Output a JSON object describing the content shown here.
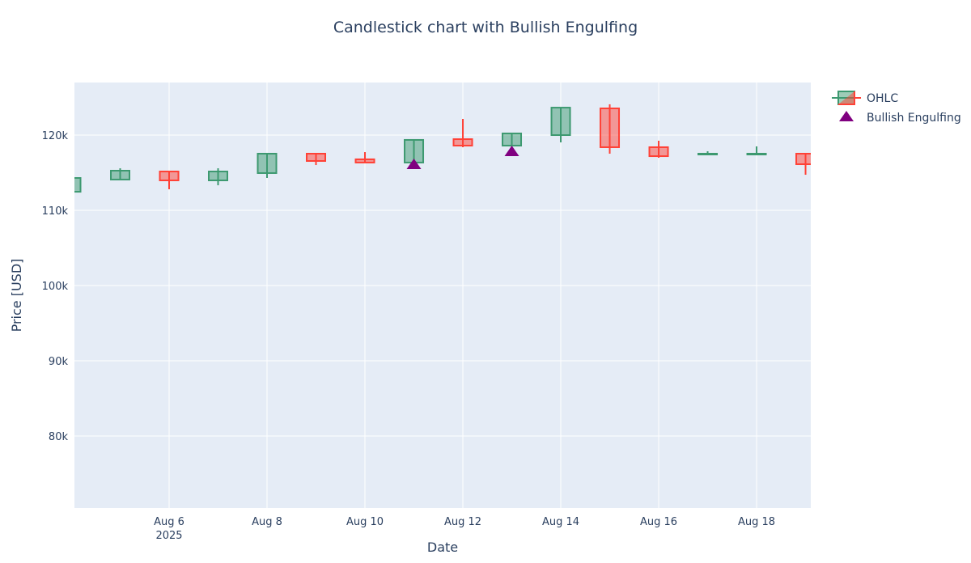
{
  "chart_data": {
    "type": "candlestick",
    "title": "Candlestick chart with Bullish Engulfing",
    "xlabel": "Date",
    "ylabel": "Price [USD]",
    "xrange": [
      "2025-08-04 01:35",
      "2025-08-19 02:34"
    ],
    "ylim": [
      70430,
      126990
    ],
    "grid": true,
    "legend_position": "top-right",
    "x_ticks": [
      {
        "date": "2025-08-06",
        "label": "Aug 6",
        "sub": "2025"
      },
      {
        "date": "2025-08-08",
        "label": "Aug 8"
      },
      {
        "date": "2025-08-10",
        "label": "Aug 10"
      },
      {
        "date": "2025-08-12",
        "label": "Aug 12"
      },
      {
        "date": "2025-08-14",
        "label": "Aug 14"
      },
      {
        "date": "2025-08-16",
        "label": "Aug 16"
      },
      {
        "date": "2025-08-18",
        "label": "Aug 18"
      }
    ],
    "y_ticks": [
      {
        "value": 80000,
        "label": "80k"
      },
      {
        "value": 90000,
        "label": "90k"
      },
      {
        "value": 100000,
        "label": "100k"
      },
      {
        "value": 110000,
        "label": "110k"
      },
      {
        "value": 120000,
        "label": "120k"
      }
    ],
    "colors": {
      "increasing": "#3D9970",
      "decreasing": "#FF4136",
      "marker": "#800080",
      "plot_bg": "#E5ECF6"
    },
    "series": [
      {
        "name": "OHLC",
        "ohlc": [
          {
            "date": "2025-08-04",
            "open": 112470,
            "high": 114300,
            "low": 112470,
            "close": 114300
          },
          {
            "date": "2025-08-05",
            "open": 114090,
            "high": 115590,
            "low": 114090,
            "close": 115270
          },
          {
            "date": "2025-08-06",
            "open": 115160,
            "high": 115160,
            "low": 112800,
            "close": 113980
          },
          {
            "date": "2025-08-07",
            "open": 113980,
            "high": 115590,
            "low": 113330,
            "close": 115160
          },
          {
            "date": "2025-08-08",
            "open": 114950,
            "high": 117530,
            "low": 114300,
            "close": 117530
          },
          {
            "date": "2025-08-09",
            "open": 117530,
            "high": 117530,
            "low": 116020,
            "close": 116560
          },
          {
            "date": "2025-08-10",
            "open": 116780,
            "high": 117740,
            "low": 116350,
            "close": 116350
          },
          {
            "date": "2025-08-11",
            "open": 116350,
            "high": 119360,
            "low": 116350,
            "close": 119360
          },
          {
            "date": "2025-08-12",
            "open": 119460,
            "high": 122150,
            "low": 118390,
            "close": 118600
          },
          {
            "date": "2025-08-13",
            "open": 118600,
            "high": 120220,
            "low": 118600,
            "close": 120220
          },
          {
            "date": "2025-08-14",
            "open": 120000,
            "high": 123650,
            "low": 119030,
            "close": 123650
          },
          {
            "date": "2025-08-15",
            "open": 123550,
            "high": 124090,
            "low": 117530,
            "close": 118390
          },
          {
            "date": "2025-08-16",
            "open": 118390,
            "high": 119250,
            "low": 116990,
            "close": 117200
          },
          {
            "date": "2025-08-17",
            "open": 117420,
            "high": 117850,
            "low": 117420,
            "close": 117530
          },
          {
            "date": "2025-08-18",
            "open": 117420,
            "high": 118500,
            "low": 117420,
            "close": 117530
          },
          {
            "date": "2025-08-19",
            "open": 117530,
            "high": 117530,
            "low": 114730,
            "close": 116130
          }
        ]
      },
      {
        "name": "Bullish Engulfing",
        "marker": "triangle-up",
        "points": [
          {
            "date": "2025-08-11",
            "value": 116130
          },
          {
            "date": "2025-08-13",
            "value": 117850
          }
        ]
      }
    ]
  }
}
